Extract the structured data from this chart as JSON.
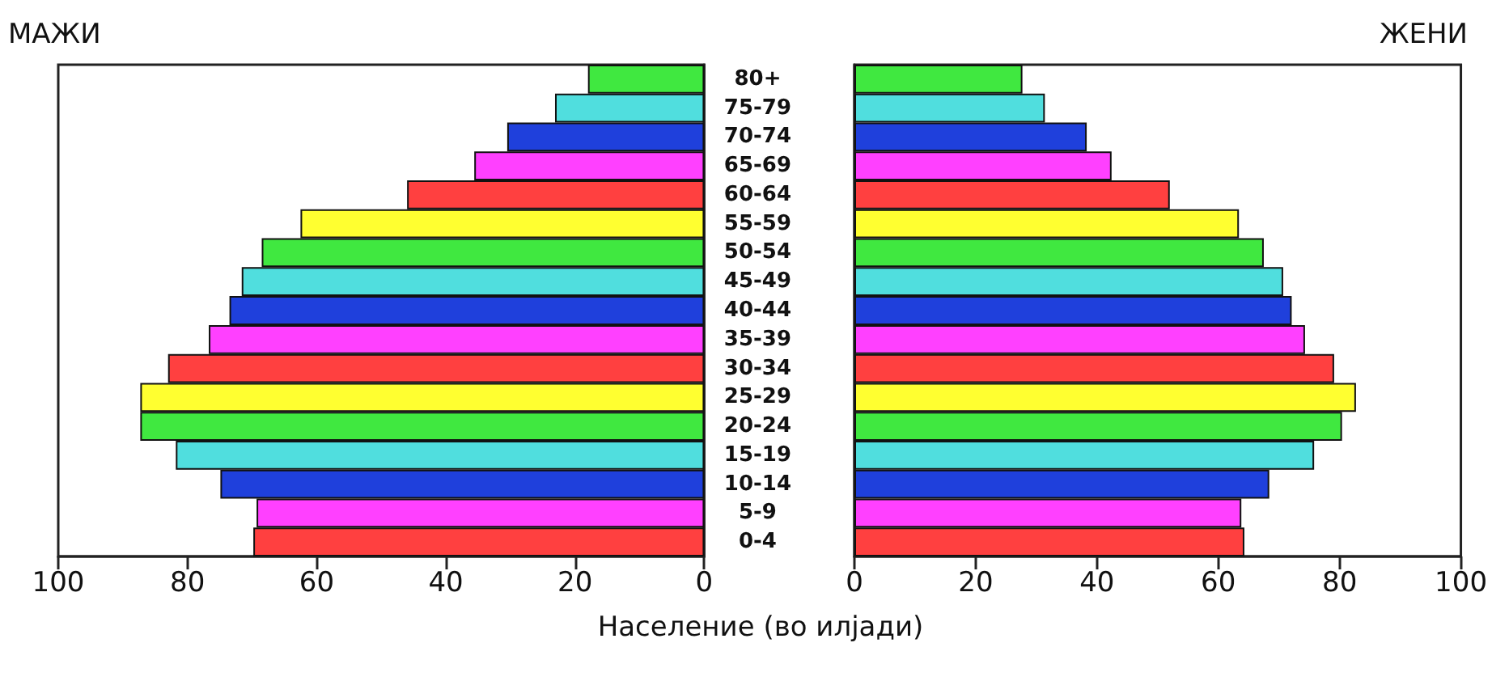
{
  "chart_data": [
    {
      "type": "bar",
      "orientation": "horizontal",
      "title": "МАЖИ",
      "xlabel": "Население (во илјади)",
      "categories": [
        "80+",
        "75-79",
        "70-74",
        "65-69",
        "60-64",
        "55-59",
        "50-54",
        "45-49",
        "40-44",
        "35-39",
        "30-34",
        "25-29",
        "20-24",
        "15-19",
        "10-14",
        "5-9",
        "0-4"
      ],
      "values": [
        18.0,
        23.1,
        30.5,
        35.6,
        46.0,
        62.5,
        68.5,
        71.6,
        73.5,
        76.7,
        83.0,
        87.3,
        87.3,
        81.8,
        74.9,
        69.3,
        69.8
      ],
      "colors": [
        "#40e840",
        "#50dede",
        "#1f40dc",
        "#ff40ff",
        "#ff4040",
        "#ffff30",
        "#40e840",
        "#50dede",
        "#1f40dc",
        "#ff40ff",
        "#ff4040",
        "#ffff30",
        "#40e840",
        "#50dede",
        "#1f40dc",
        "#ff40ff",
        "#ff4040"
      ],
      "xlim": [
        100,
        0
      ],
      "xticks": [
        100,
        80,
        60,
        40,
        20,
        0
      ],
      "grid": false
    },
    {
      "type": "bar",
      "orientation": "horizontal",
      "title": "ЖЕНИ",
      "categories": [
        null,
        null,
        null,
        null,
        null,
        null,
        null,
        null,
        null,
        null,
        null,
        null,
        null,
        null,
        null,
        null,
        null
      ],
      "values": [
        27.7,
        31.4,
        38.3,
        42.4,
        52.0,
        63.4,
        67.5,
        70.7,
        72.1,
        74.3,
        79.1,
        82.7,
        80.4,
        75.8,
        68.4,
        63.8,
        64.3
      ],
      "colors": [
        "#40e840",
        "#50dede",
        "#1f40dc",
        "#ff40ff",
        "#ff4040",
        "#ffff30",
        "#40e840",
        "#50dede",
        "#1f40dc",
        "#ff40ff",
        "#ff4040",
        "#ffff30",
        "#40e840",
        "#50dede",
        "#1f40dc",
        "#ff40ff",
        "#ff4040"
      ],
      "xlim": [
        0,
        100
      ],
      "xticks": [
        0,
        20,
        40,
        60,
        80,
        100
      ],
      "grid": false
    }
  ]
}
